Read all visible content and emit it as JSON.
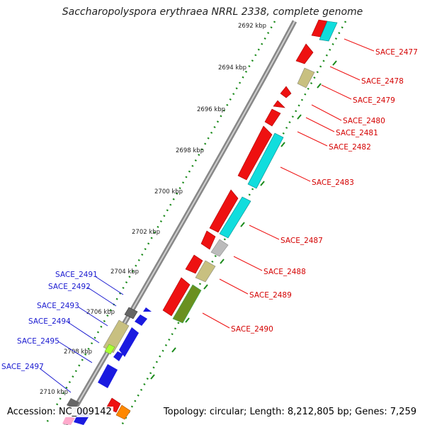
{
  "title": "Saccharopolyspora erythraea NRRL 2338, complete genome",
  "accession": "Accession: NC_009142",
  "summary": "Topology: circular; Length: 8,212,805 bp; Genes: 7,259",
  "scale_labels": [
    "2692 kbp",
    "2694 kbp",
    "2696 kbp",
    "2698 kbp",
    "2700 kbp",
    "2702 kbp",
    "2704 kbp",
    "2706 kbp",
    "2708 kbp",
    "2710 kbp"
  ],
  "colors": {
    "red": "#ee1111",
    "cyan": "#11dddd",
    "khaki": "#c8c080",
    "grey": "#bbbbbb",
    "darkgrey": "#666666",
    "olive": "#6a9020",
    "blue": "#1a1ae0",
    "lime": "#aaff33",
    "orange": "#ff8800",
    "pink": "#ffaacc",
    "tick": "#1a8a1a",
    "label_red": "#d40000",
    "label_blue": "#1a1ad0"
  },
  "forward_labels": [
    "SACE_2477",
    "SACE_2478",
    "SACE_2479",
    "SACE_2480",
    "SACE_2481",
    "SACE_2482",
    "SACE_2483",
    "SACE_2487",
    "SACE_2488",
    "SACE_2489",
    "SACE_2490"
  ],
  "reverse_labels": [
    "SACE_2491",
    "SACE_2492",
    "SACE_2493",
    "SACE_2494",
    "SACE_2495",
    "SACE_2497"
  ]
}
